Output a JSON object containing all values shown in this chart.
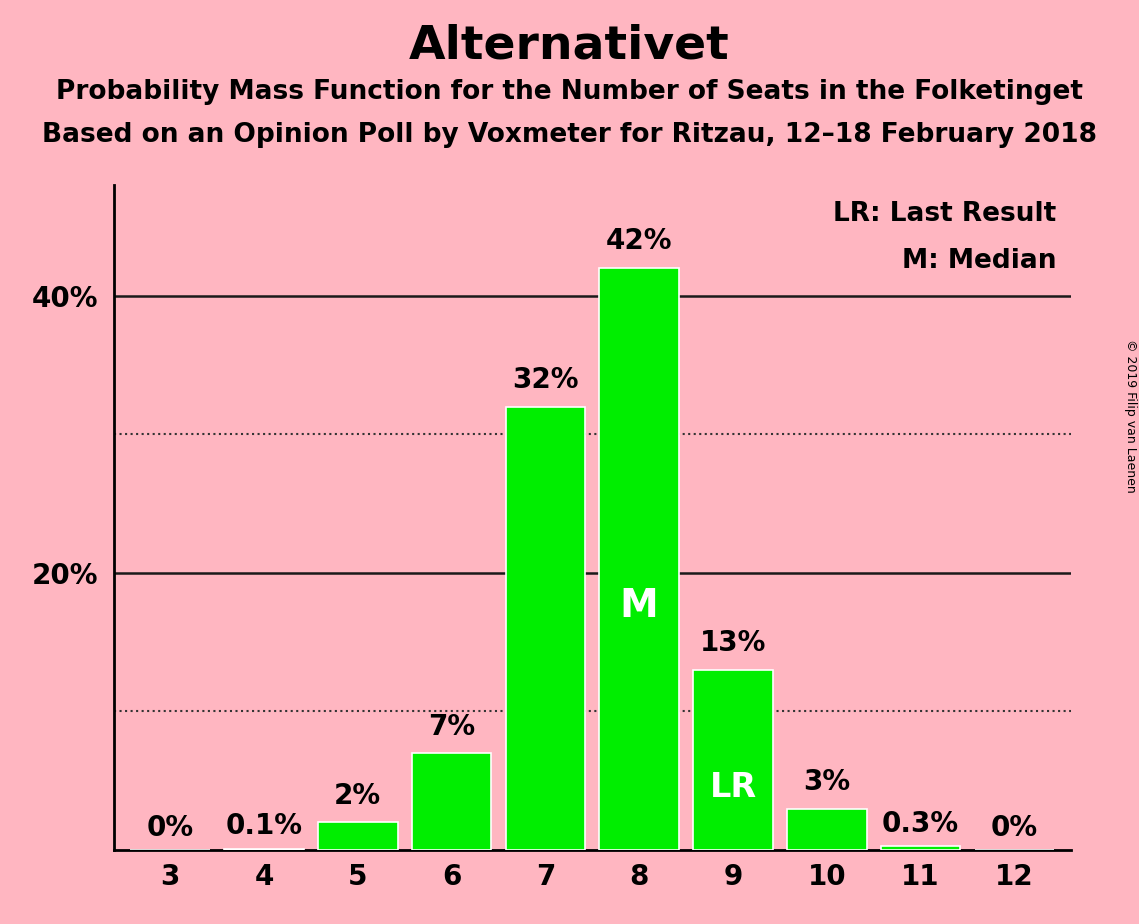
{
  "title": "Alternativet",
  "subtitle1": "Probability Mass Function for the Number of Seats in the Folketinget",
  "subtitle2": "Based on an Opinion Poll by Voxmeter for Ritzau, 12–18 February 2018",
  "copyright": "© 2019 Filip van Laenen",
  "categories": [
    3,
    4,
    5,
    6,
    7,
    8,
    9,
    10,
    11,
    12
  ],
  "values": [
    0.0,
    0.1,
    2.0,
    7.0,
    32.0,
    42.0,
    13.0,
    3.0,
    0.3,
    0.0
  ],
  "bar_color": "#00ee00",
  "background_color": "#ffb6c1",
  "bar_edge_color": "#ffffff",
  "ylim": [
    0,
    48
  ],
  "solid_lines": [
    20,
    40
  ],
  "dotted_lines": [
    10,
    30
  ],
  "median_seat": 8,
  "lr_seat": 9,
  "legend_lr": "LR: Last Result",
  "legend_m": "M: Median",
  "title_fontsize": 34,
  "subtitle_fontsize": 19,
  "tick_fontsize": 20,
  "annotation_fontsize": 20,
  "legend_fontsize": 19,
  "copyright_fontsize": 9,
  "bar_labels": [
    "0%",
    "0.1%",
    "2%",
    "7%",
    "32%",
    "42%",
    "13%",
    "3%",
    "0.3%",
    "0%"
  ]
}
